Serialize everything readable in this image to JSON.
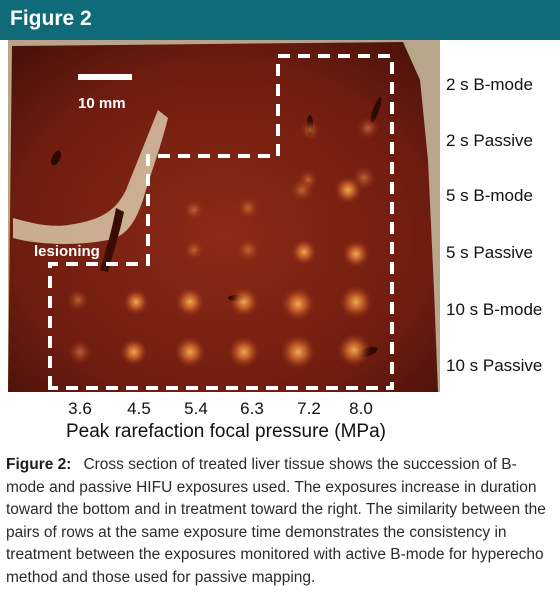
{
  "figure": {
    "header_title": "Figure 2",
    "colors": {
      "header_bg": "#0f6b78",
      "tissue": "#7a1f12",
      "dashed_line": "#ffffff"
    }
  },
  "photo": {
    "scale_bar_label": "10 mm",
    "region_label": "lesioning"
  },
  "row_labels": [
    "2 s B-mode",
    "2 s Passive",
    "5 s B-mode",
    "5 s Passive",
    "10 s B-mode",
    "10 s Passive"
  ],
  "x_axis": {
    "ticks": [
      "3.6",
      "4.5",
      "5.4",
      "6.3",
      "7.2",
      "8.0"
    ],
    "title": "Peak rarefaction focal pressure (MPa)"
  },
  "caption": {
    "label": "Figure 2:",
    "text": "Cross section of treated liver tissue shows the succession of B-mode and passive HIFU exposures used. The exposures increase in duration toward the bottom and in treatment toward the right. The similarity between the pairs of rows at the same exposure time demonstrates the consistency in treatment between the exposures monitored with active B-mode for hyperecho method and those used for passive mapping."
  }
}
